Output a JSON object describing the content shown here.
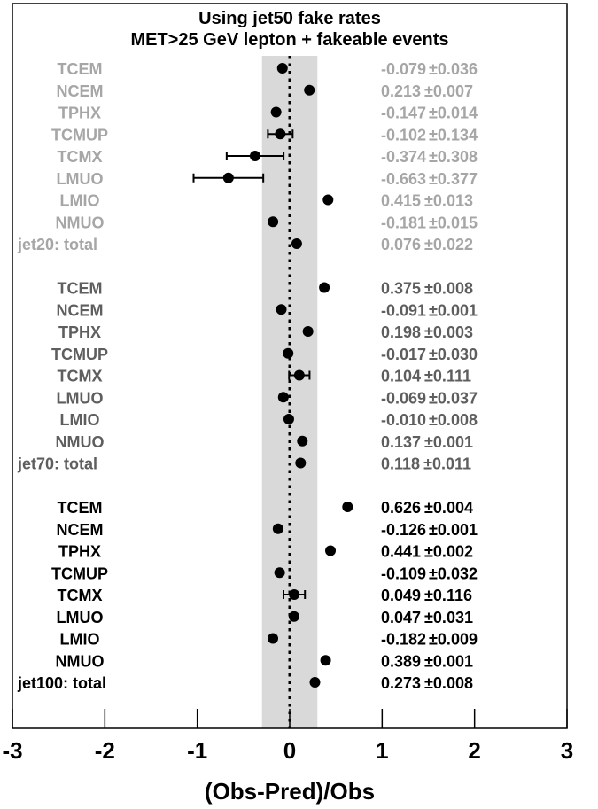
{
  "chart_data": {
    "type": "scatter",
    "title_lines": [
      "Using jet50 fake rates",
      "MET>25 GeV lepton + fakeable events"
    ],
    "xlabel": "(Obs-Pred)/Obs",
    "ylabel": "",
    "xlim": [
      -3,
      3
    ],
    "xticks": [
      "-3",
      "-2",
      "-1",
      "0",
      "1",
      "2",
      "3"
    ],
    "band": [
      -0.3,
      0.3
    ],
    "grid": false,
    "groups": [
      {
        "color": "#a6a6a6",
        "rows": [
          {
            "label": "TCEM",
            "value": -0.079,
            "error": 0.036,
            "value_text": "-0.079",
            "error_text": "±0.036"
          },
          {
            "label": "NCEM",
            "value": 0.213,
            "error": 0.007,
            "value_text": "0.213",
            "error_text": "±0.007"
          },
          {
            "label": "TPHX",
            "value": -0.147,
            "error": 0.014,
            "value_text": "-0.147",
            "error_text": "±0.014"
          },
          {
            "label": "TCMUP",
            "value": -0.102,
            "error": 0.134,
            "value_text": "-0.102",
            "error_text": "±0.134"
          },
          {
            "label": "TCMX",
            "value": -0.374,
            "error": 0.308,
            "value_text": "-0.374",
            "error_text": "±0.308"
          },
          {
            "label": "LMUO",
            "value": -0.663,
            "error": 0.377,
            "value_text": "-0.663",
            "error_text": "±0.377"
          },
          {
            "label": "LMIO",
            "value": 0.415,
            "error": 0.013,
            "value_text": "0.415",
            "error_text": "±0.013"
          },
          {
            "label": "NMUO",
            "value": -0.181,
            "error": 0.015,
            "value_text": "-0.181",
            "error_text": "±0.015"
          },
          {
            "label": "jet20: total",
            "value": 0.076,
            "error": 0.022,
            "value_text": "0.076",
            "error_text": "±0.022"
          }
        ]
      },
      {
        "color": "#5e5e5e",
        "rows": [
          {
            "label": "TCEM",
            "value": 0.375,
            "error": 0.008,
            "value_text": "0.375",
            "error_text": "±0.008"
          },
          {
            "label": "NCEM",
            "value": -0.091,
            "error": 0.001,
            "value_text": "-0.091",
            "error_text": "±0.001"
          },
          {
            "label": "TPHX",
            "value": 0.198,
            "error": 0.003,
            "value_text": "0.198",
            "error_text": "±0.003"
          },
          {
            "label": "TCMUP",
            "value": -0.017,
            "error": 0.03,
            "value_text": "-0.017",
            "error_text": "±0.030"
          },
          {
            "label": "TCMX",
            "value": 0.104,
            "error": 0.111,
            "value_text": "0.104",
            "error_text": "±0.111"
          },
          {
            "label": "LMUO",
            "value": -0.069,
            "error": 0.037,
            "value_text": "-0.069",
            "error_text": "±0.037"
          },
          {
            "label": "LMIO",
            "value": -0.01,
            "error": 0.008,
            "value_text": "-0.010",
            "error_text": "±0.008"
          },
          {
            "label": "NMUO",
            "value": 0.137,
            "error": 0.001,
            "value_text": "0.137",
            "error_text": "±0.001"
          },
          {
            "label": "jet70: total",
            "value": 0.118,
            "error": 0.011,
            "value_text": "0.118",
            "error_text": "±0.011"
          }
        ]
      },
      {
        "color": "#000000",
        "rows": [
          {
            "label": "TCEM",
            "value": 0.626,
            "error": 0.004,
            "value_text": "0.626",
            "error_text": "±0.004"
          },
          {
            "label": "NCEM",
            "value": -0.126,
            "error": 0.001,
            "value_text": "-0.126",
            "error_text": "±0.001"
          },
          {
            "label": "TPHX",
            "value": 0.441,
            "error": 0.002,
            "value_text": "0.441",
            "error_text": "±0.002"
          },
          {
            "label": "TCMUP",
            "value": -0.109,
            "error": 0.032,
            "value_text": "-0.109",
            "error_text": "±0.032"
          },
          {
            "label": "TCMX",
            "value": 0.049,
            "error": 0.116,
            "value_text": "0.049",
            "error_text": "±0.116"
          },
          {
            "label": "LMUO",
            "value": 0.047,
            "error": 0.031,
            "value_text": "0.047",
            "error_text": "±0.031"
          },
          {
            "label": "LMIO",
            "value": -0.182,
            "error": 0.009,
            "value_text": "-0.182",
            "error_text": "±0.009"
          },
          {
            "label": "NMUO",
            "value": 0.389,
            "error": 0.001,
            "value_text": "0.389",
            "error_text": "±0.001"
          },
          {
            "label": "jet100: total",
            "value": 0.273,
            "error": 0.008,
            "value_text": "0.273",
            "error_text": "±0.008"
          }
        ]
      }
    ]
  }
}
